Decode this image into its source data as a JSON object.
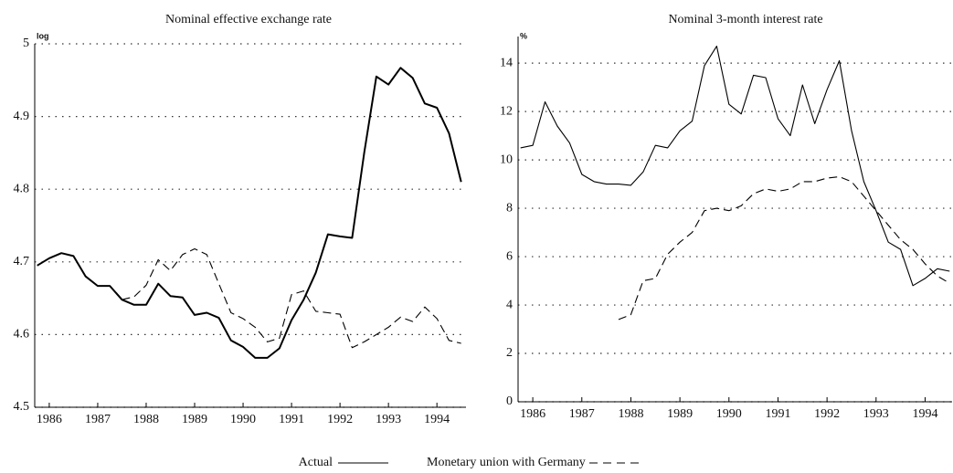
{
  "chart_data": [
    {
      "type": "line",
      "title": "Nominal effective exchange rate",
      "unit": "log",
      "x": [
        1985.75,
        1986,
        1986.25,
        1986.5,
        1986.75,
        1987,
        1987.25,
        1987.5,
        1987.75,
        1988,
        1988.25,
        1988.5,
        1988.75,
        1989,
        1989.25,
        1989.5,
        1989.75,
        1990,
        1990.25,
        1990.5,
        1990.75,
        1991,
        1991.25,
        1991.5,
        1991.75,
        1992,
        1992.25,
        1992.5,
        1992.75,
        1993,
        1993.25,
        1993.5,
        1993.75,
        1994,
        1994.25,
        1994.5
      ],
      "xlim": [
        1985.7,
        1994.6
      ],
      "xticks": [
        1986,
        1987,
        1988,
        1989,
        1990,
        1991,
        1992,
        1993,
        1994
      ],
      "ylim": [
        4.5,
        5
      ],
      "yticks": [
        4.5,
        4.6,
        4.7,
        4.8,
        4.9,
        5
      ],
      "grid": true,
      "series": [
        {
          "name": "Actual",
          "color": "#000000",
          "dash": "solid",
          "values": [
            4.695,
            4.705,
            4.712,
            4.708,
            4.68,
            4.667,
            4.667,
            4.648,
            4.641,
            4.641,
            4.67,
            4.653,
            4.651,
            4.627,
            4.63,
            4.623,
            4.592,
            4.583,
            4.568,
            4.568,
            4.581,
            4.62,
            4.648,
            4.685,
            4.738,
            4.735,
            4.733,
            4.85,
            4.955,
            4.944,
            4.967,
            4.953,
            4.918,
            4.912,
            4.877,
            4.81
          ]
        },
        {
          "name": "Monetary union with Germany",
          "color": "#000000",
          "dash": "dashed",
          "values": [
            null,
            null,
            null,
            null,
            null,
            null,
            null,
            4.648,
            4.652,
            4.668,
            4.703,
            4.688,
            4.71,
            4.718,
            4.71,
            4.67,
            4.63,
            4.622,
            4.61,
            4.59,
            4.595,
            4.655,
            4.66,
            4.632,
            4.63,
            4.628,
            4.582,
            4.59,
            4.6,
            4.61,
            4.624,
            4.618,
            4.638,
            4.622,
            4.592,
            4.588
          ]
        }
      ]
    },
    {
      "type": "line",
      "title": "Nominal 3-month interest rate",
      "unit": "%",
      "x": [
        1985.75,
        1986,
        1986.25,
        1986.5,
        1986.75,
        1987,
        1987.25,
        1987.5,
        1987.75,
        1988,
        1988.25,
        1988.5,
        1988.75,
        1989,
        1989.25,
        1989.5,
        1989.75,
        1990,
        1990.25,
        1990.5,
        1990.75,
        1991,
        1991.25,
        1991.5,
        1991.75,
        1992,
        1992.25,
        1992.5,
        1992.75,
        1993,
        1993.25,
        1993.5,
        1993.75,
        1994,
        1994.25,
        1994.5
      ],
      "xlim": [
        1985.7,
        1994.55
      ],
      "xticks": [
        1986,
        1987,
        1988,
        1989,
        1990,
        1991,
        1992,
        1993,
        1994
      ],
      "ylim": [
        0,
        15.1
      ],
      "yticks": [
        0,
        2,
        4,
        6,
        8,
        10,
        12,
        14
      ],
      "grid": true,
      "series": [
        {
          "name": "Actual",
          "color": "#000000",
          "dash": "solid",
          "values": [
            10.5,
            10.6,
            12.4,
            11.4,
            10.7,
            9.4,
            9.1,
            9.0,
            9.0,
            8.95,
            9.5,
            10.6,
            10.5,
            11.2,
            11.6,
            13.9,
            14.7,
            12.3,
            11.9,
            13.5,
            13.4,
            11.7,
            11.0,
            13.1,
            11.5,
            12.9,
            14.1,
            11.2,
            9.1,
            7.9,
            6.6,
            6.3,
            4.8,
            5.1,
            5.5,
            5.4
          ]
        },
        {
          "name": "Monetary union with Germany",
          "color": "#000000",
          "dash": "dashed",
          "values": [
            null,
            null,
            null,
            null,
            null,
            null,
            null,
            null,
            3.4,
            3.6,
            5.0,
            5.1,
            6.1,
            6.6,
            7.0,
            7.9,
            8.0,
            7.9,
            8.1,
            8.6,
            8.8,
            8.7,
            8.8,
            9.1,
            9.1,
            9.25,
            9.3,
            9.1,
            8.5,
            7.9,
            7.3,
            6.7,
            6.3,
            5.7,
            5.2,
            4.9
          ]
        }
      ]
    }
  ]
}
